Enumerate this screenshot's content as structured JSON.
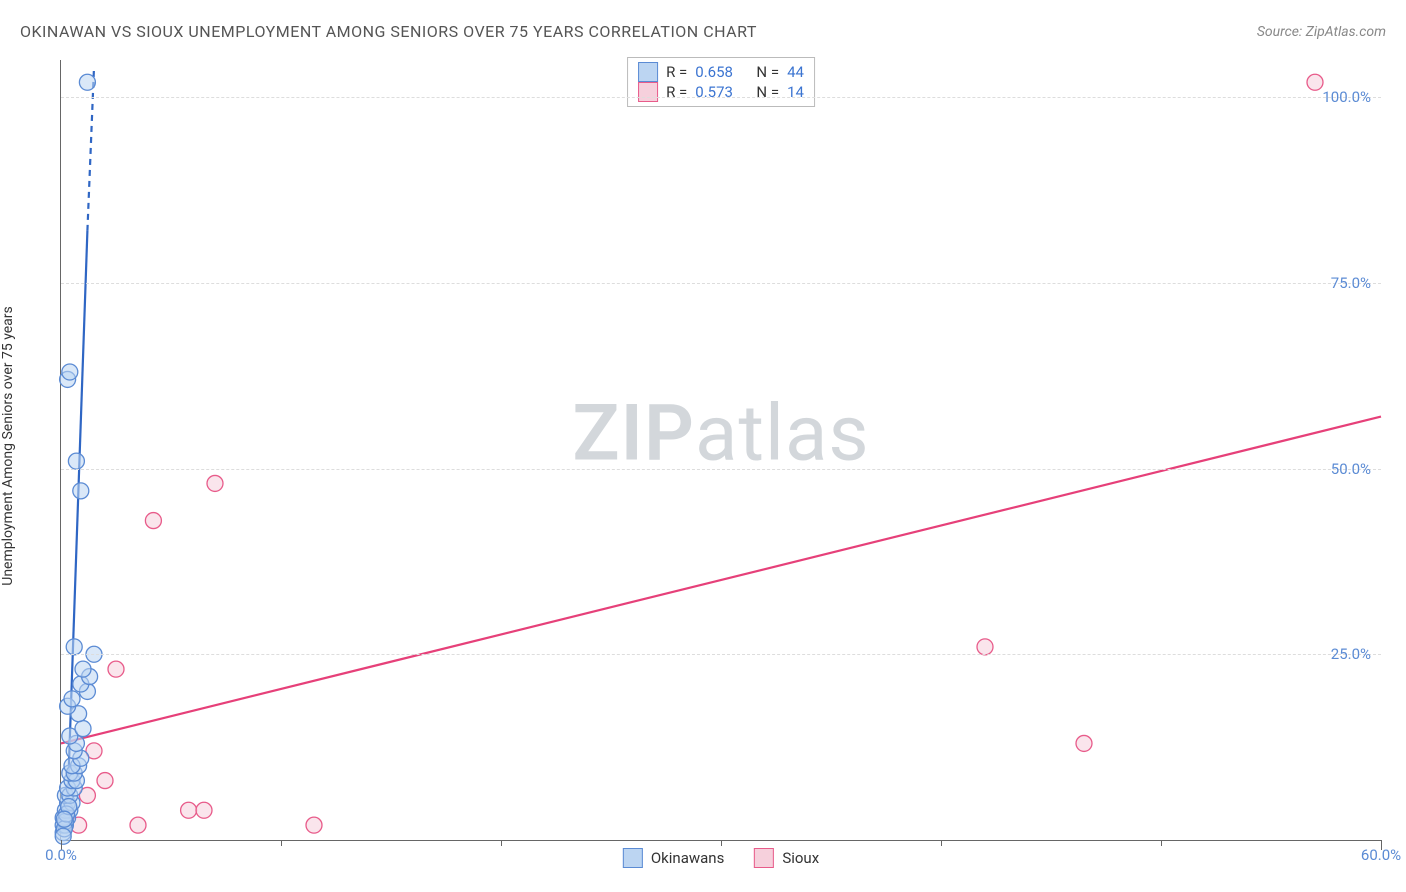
{
  "header": {
    "title": "OKINAWAN VS SIOUX UNEMPLOYMENT AMONG SENIORS OVER 75 YEARS CORRELATION CHART",
    "source_label": "Source:",
    "source_name": "ZipAtlas.com"
  },
  "chart": {
    "type": "scatter",
    "ylabel": "Unemployment Among Seniors over 75 years",
    "xlim": [
      0,
      60
    ],
    "ylim": [
      0,
      105
    ],
    "xtick_major": [
      0,
      60
    ],
    "xtick_minor": [
      10,
      20,
      30,
      40,
      50
    ],
    "ytick_major": [
      25,
      50,
      75,
      100
    ],
    "ytick_labels": [
      "25.0%",
      "50.0%",
      "75.0%",
      "100.0%"
    ],
    "xtick_labels": [
      "0.0%",
      "60.0%"
    ],
    "background_color": "#ffffff",
    "grid_color": "#dddddd",
    "axis_color": "#666666",
    "tick_label_color": "#5b8bd4",
    "marker_radius": 8,
    "marker_stroke_width": 1.3,
    "line_width": 2.2,
    "watermark": "ZIPatlas",
    "watermark_color": "#d3d7db",
    "series": {
      "okinawans": {
        "label": "Okinawans",
        "color_fill": "#bcd5f2",
        "color_stroke": "#5b8bd4",
        "line_color": "#2f66c4",
        "R": "0.658",
        "N": "44",
        "points": [
          [
            0.1,
            1
          ],
          [
            0.1,
            2
          ],
          [
            0.2,
            2
          ],
          [
            0.3,
            3
          ],
          [
            0.1,
            3
          ],
          [
            0.4,
            4
          ],
          [
            0.2,
            4
          ],
          [
            0.3,
            5
          ],
          [
            0.5,
            5
          ],
          [
            0.2,
            6
          ],
          [
            0.4,
            6
          ],
          [
            0.6,
            7
          ],
          [
            0.3,
            7
          ],
          [
            0.5,
            8
          ],
          [
            0.7,
            8
          ],
          [
            0.4,
            9
          ],
          [
            0.6,
            9
          ],
          [
            0.8,
            10
          ],
          [
            0.5,
            10
          ],
          [
            0.9,
            11
          ],
          [
            0.6,
            12
          ],
          [
            0.7,
            13
          ],
          [
            0.4,
            14
          ],
          [
            1.0,
            15
          ],
          [
            0.8,
            17
          ],
          [
            0.3,
            18
          ],
          [
            0.5,
            19
          ],
          [
            1.2,
            20
          ],
          [
            0.9,
            21
          ],
          [
            1.3,
            22
          ],
          [
            1.0,
            23
          ],
          [
            1.5,
            25
          ],
          [
            0.6,
            26
          ],
          [
            0.9,
            47
          ],
          [
            0.7,
            51
          ],
          [
            0.3,
            62
          ],
          [
            0.4,
            63
          ],
          [
            1.2,
            102
          ],
          [
            0.2,
            2.5
          ],
          [
            0.15,
            1.5
          ],
          [
            0.25,
            3.5
          ],
          [
            0.35,
            4.5
          ],
          [
            0.1,
            0.5
          ],
          [
            0.15,
            2.8
          ]
        ],
        "trend": {
          "x1": 0.3,
          "y1": 5,
          "x2": 1.2,
          "y2": 82
        },
        "trend_dash": {
          "x1": 1.2,
          "y1": 82,
          "x2": 1.5,
          "y2": 104
        }
      },
      "sioux": {
        "label": "Sioux",
        "color_fill": "#f6d0dc",
        "color_stroke": "#e85b8a",
        "line_color": "#e64079",
        "R": "0.573",
        "N": "14",
        "points": [
          [
            0.8,
            2
          ],
          [
            1.2,
            6
          ],
          [
            1.5,
            12
          ],
          [
            2.0,
            8
          ],
          [
            2.5,
            23
          ],
          [
            3.5,
            2
          ],
          [
            4.2,
            43
          ],
          [
            5.8,
            4
          ],
          [
            6.5,
            4
          ],
          [
            7.0,
            48
          ],
          [
            11.5,
            2
          ],
          [
            42.0,
            26
          ],
          [
            46.5,
            13
          ],
          [
            57.0,
            102
          ]
        ],
        "trend": {
          "x1": 0,
          "y1": 13,
          "x2": 60,
          "y2": 57
        }
      }
    }
  },
  "stats_box": {
    "R_label": "R =",
    "N_label": "N ="
  }
}
